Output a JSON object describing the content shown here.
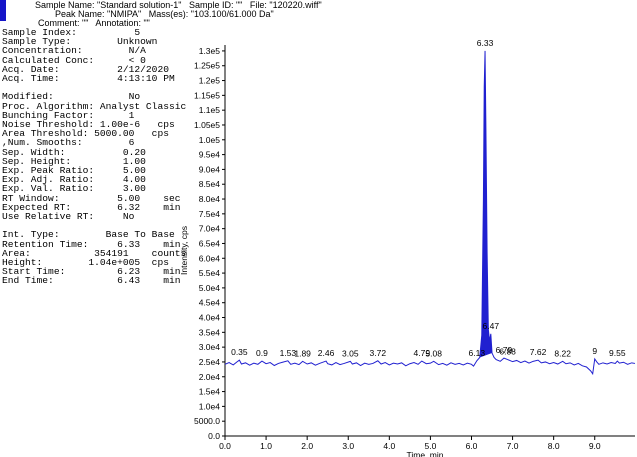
{
  "header": {
    "lines": [
      "Sample Name: \"Standard solution-1\"   Sample ID: \"\"   File: \"120220.wiff\"",
      "Peak Name: \"NMIPA\"   Mass(es): \"103.100/61.000 Da\"",
      "Comment: \"\"   Annotation: \"\""
    ]
  },
  "sample_info": [
    [
      "Sample Index:          5",
      "Sample Type:        Unknown",
      "Concentration:        N/A",
      "Calculated Conc:      < 0",
      "Acq. Date:          2/12/2020",
      "Acq. Time:          4:13:10 PM"
    ],
    [
      "Modified:             No",
      "Proc. Algorithm: Analyst Classic",
      "Bunching Factor:      1",
      "Noise Threshold: 1.00e-6   cps",
      "Area Threshold: 5000.00   cps",
      ",Num. Smooths:        6",
      "Sep. Width:          0.20",
      "Sep. Height:         1.00",
      "Exp. Peak Ratio:     5.00",
      "Exp. Adj. Ratio:     4.00",
      "Exp. Val. Ratio:     3.00",
      "RT Window:          5.00    sec",
      "Expected RT:        6.32    min",
      "Use Relative RT:     No"
    ],
    [
      "Int. Type:        Base To Base",
      "Retention Time:     6.33    min",
      "Area:           354191    counts",
      "Height:        1.04e+005  cps",
      "Start Time:         6.23    min",
      "End Time:           6.43    min"
    ]
  ],
  "chart_data": {
    "type": "line",
    "xlabel": "Time, min",
    "ylabel": "Intensity, cps",
    "xlim": [
      0,
      9.98
    ],
    "ylim": [
      0,
      132000
    ],
    "xticks": [
      {
        "value": 0,
        "label": "0.0"
      },
      {
        "value": 1,
        "label": "1.0"
      },
      {
        "value": 2,
        "label": "2.0"
      },
      {
        "value": 3,
        "label": "3.0"
      },
      {
        "value": 4,
        "label": "4.0"
      },
      {
        "value": 5,
        "label": "5.0"
      },
      {
        "value": 6,
        "label": "6.0"
      },
      {
        "value": 7,
        "label": "7.0"
      },
      {
        "value": 8,
        "label": "8.0"
      },
      {
        "value": 9,
        "label": "9.0"
      }
    ],
    "yticks": [
      {
        "value": 0,
        "label": "0.0"
      },
      {
        "value": 5000,
        "label": "5000.0"
      },
      {
        "value": 10000,
        "label": "1.0e4"
      },
      {
        "value": 15000,
        "label": "1.5e4"
      },
      {
        "value": 20000,
        "label": "2.0e4"
      },
      {
        "value": 25000,
        "label": "2.5e4"
      },
      {
        "value": 30000,
        "label": "3.0e4"
      },
      {
        "value": 35000,
        "label": "3.5e4"
      },
      {
        "value": 40000,
        "label": "4.0e4"
      },
      {
        "value": 45000,
        "label": "4.5e4"
      },
      {
        "value": 50000,
        "label": "5.0e4"
      },
      {
        "value": 55000,
        "label": "5.5e4"
      },
      {
        "value": 60000,
        "label": "6.0e4"
      },
      {
        "value": 65000,
        "label": "6.5e4"
      },
      {
        "value": 70000,
        "label": "7.0e4"
      },
      {
        "value": 75000,
        "label": "7.5e4"
      },
      {
        "value": 80000,
        "label": "8.0e4"
      },
      {
        "value": 85000,
        "label": "8.5e4"
      },
      {
        "value": 90000,
        "label": "9.0e4"
      },
      {
        "value": 95000,
        "label": "9.5e4"
      },
      {
        "value": 100000,
        "label": "1.0e5"
      },
      {
        "value": 105000,
        "label": "1.05e5"
      },
      {
        "value": 110000,
        "label": "1.1e5"
      },
      {
        "value": 115000,
        "label": "1.15e5"
      },
      {
        "value": 120000,
        "label": "1.2e5"
      },
      {
        "value": 125000,
        "label": "1.25e5"
      },
      {
        "value": 130000,
        "label": "1.3e5"
      }
    ],
    "color": "#2020d0",
    "x": [
      0.0,
      0.1,
      0.2,
      0.3,
      0.35,
      0.4,
      0.5,
      0.6,
      0.7,
      0.8,
      0.9,
      1.0,
      1.1,
      1.2,
      1.3,
      1.4,
      1.53,
      1.6,
      1.7,
      1.8,
      1.89,
      2.0,
      2.1,
      2.2,
      2.3,
      2.46,
      2.5,
      2.6,
      2.7,
      2.8,
      2.9,
      3.05,
      3.1,
      3.2,
      3.3,
      3.4,
      3.5,
      3.6,
      3.72,
      3.8,
      3.9,
      4.0,
      4.1,
      4.2,
      4.3,
      4.4,
      4.5,
      4.6,
      4.7,
      4.79,
      4.9,
      5.0,
      5.08,
      5.2,
      5.3,
      5.4,
      5.5,
      5.6,
      5.7,
      5.8,
      5.9,
      6.0,
      6.05,
      6.13,
      6.2,
      6.25,
      6.29,
      6.31,
      6.33,
      6.35,
      6.38,
      6.41,
      6.44,
      6.47,
      6.5,
      6.55,
      6.6,
      6.7,
      6.79,
      6.88,
      7.0,
      7.1,
      7.2,
      7.3,
      7.4,
      7.5,
      7.62,
      7.7,
      7.8,
      7.9,
      8.0,
      8.1,
      8.22,
      8.3,
      8.4,
      8.5,
      8.6,
      8.7,
      8.8,
      8.9,
      8.95,
      9.0,
      9.05,
      9.1,
      9.2,
      9.3,
      9.4,
      9.5,
      9.55,
      9.6,
      9.7,
      9.8,
      9.9,
      9.98
    ],
    "values": [
      24200,
      24800,
      24000,
      25100,
      25600,
      24300,
      24700,
      23900,
      24600,
      24200,
      25300,
      24400,
      24800,
      23800,
      24500,
      24900,
      25400,
      24200,
      24600,
      24100,
      25200,
      24300,
      24700,
      23900,
      24500,
      25300,
      24400,
      24000,
      24800,
      24100,
      24500,
      25200,
      24300,
      24700,
      23800,
      24600,
      24200,
      24500,
      25400,
      24300,
      24800,
      24000,
      24600,
      24300,
      24700,
      23700,
      24400,
      24800,
      24200,
      25300,
      24400,
      24600,
      25200,
      24100,
      24500,
      23900,
      24700,
      24200,
      24500,
      24000,
      24600,
      24200,
      23600,
      25400,
      26500,
      34000,
      80000,
      118000,
      130000,
      105000,
      62000,
      36000,
      32000,
      34500,
      28000,
      26500,
      25800,
      25200,
      26300,
      25800,
      25100,
      25500,
      24800,
      25300,
      24600,
      25200,
      25600,
      24700,
      25000,
      24400,
      24800,
      24300,
      25200,
      24400,
      24700,
      24000,
      24500,
      23700,
      23300,
      22000,
      21000,
      26000,
      25000,
      24200,
      24700,
      24300,
      24800,
      24500,
      25300,
      24600,
      24900,
      24200,
      24700,
      24500
    ],
    "peaks": [
      {
        "x": 0.35,
        "y": 25600
      },
      {
        "x": 0.9,
        "y": 25300
      },
      {
        "x": 1.53,
        "y": 25400
      },
      {
        "x": 1.89,
        "y": 25200
      },
      {
        "x": 2.46,
        "y": 25300
      },
      {
        "x": 3.05,
        "y": 25200
      },
      {
        "x": 3.72,
        "y": 25400
      },
      {
        "x": 4.79,
        "y": 25300
      },
      {
        "x": 5.08,
        "y": 25200
      },
      {
        "x": 6.13,
        "y": 25400
      },
      {
        "x": 6.33,
        "y": 130000
      },
      {
        "x": 6.47,
        "y": 34500
      },
      {
        "x": 6.79,
        "y": 26300
      },
      {
        "x": 6.88,
        "y": 25800
      },
      {
        "x": 7.62,
        "y": 25600
      },
      {
        "x": 8.22,
        "y": 25200
      },
      {
        "x": 9.0,
        "y": 26000
      },
      {
        "x": 9.55,
        "y": 25300
      }
    ]
  }
}
